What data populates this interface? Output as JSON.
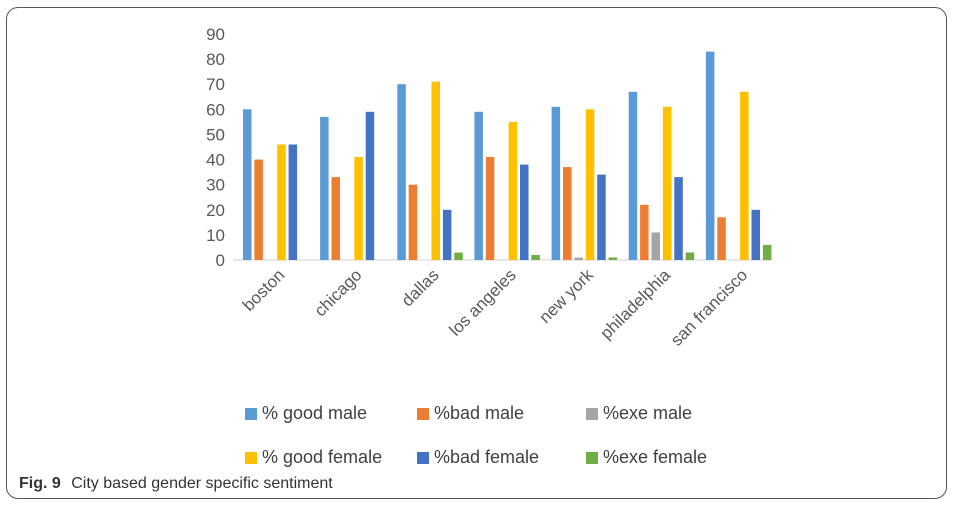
{
  "caption": {
    "label": "Fig. 9",
    "text": "City based gender specific sentiment"
  },
  "chart_data": {
    "type": "bar",
    "categories": [
      "boston",
      "chicago",
      "dallas",
      "los angeles",
      "new york",
      "philadelphia",
      "san francisco"
    ],
    "series": [
      {
        "name": "% good male",
        "color": "#5B9BD5",
        "values": [
          60,
          57,
          70,
          59,
          61,
          67,
          83
        ]
      },
      {
        "name": "%bad male",
        "color": "#ED7D31",
        "values": [
          40,
          33,
          30,
          41,
          37,
          22,
          17
        ]
      },
      {
        "name": "%exe male",
        "color": "#A5A5A5",
        "values": [
          0,
          0,
          0,
          0,
          1,
          11,
          0
        ]
      },
      {
        "name": "% good female",
        "color": "#FFC000",
        "values": [
          46,
          41,
          71,
          55,
          60,
          61,
          67
        ]
      },
      {
        "name": "%bad female",
        "color": "#4472C4",
        "values": [
          46,
          59,
          20,
          38,
          34,
          33,
          20
        ]
      },
      {
        "name": "%exe female",
        "color": "#70AD47",
        "values": [
          0,
          0,
          3,
          2,
          1,
          3,
          6
        ]
      }
    ],
    "ylim": [
      0,
      90
    ],
    "yticks": [
      0,
      10,
      20,
      30,
      40,
      50,
      60,
      70,
      80,
      90
    ],
    "grid": false,
    "legend": "bottom"
  }
}
